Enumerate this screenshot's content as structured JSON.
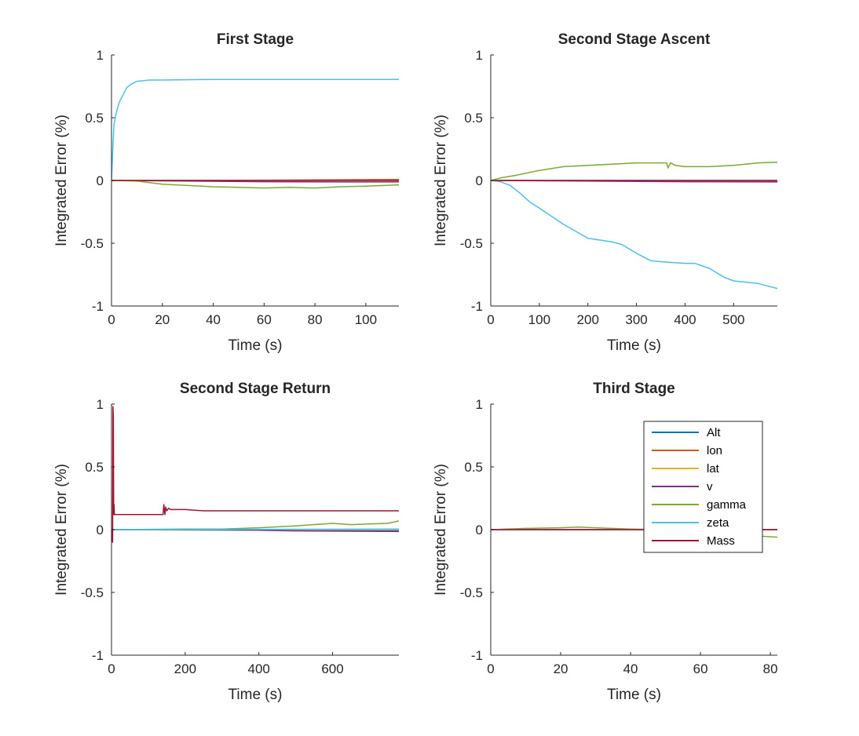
{
  "figure": {
    "legend": {
      "panel": 3,
      "placement": "top-right",
      "entries": [
        {
          "label": "Alt",
          "color": "#0072BD"
        },
        {
          "label": "lon",
          "color": "#D95319"
        },
        {
          "label": "lat",
          "color": "#EDB120"
        },
        {
          "label": "v",
          "color": "#7E2F8E"
        },
        {
          "label": "gamma",
          "color": "#77AC30"
        },
        {
          "label": "zeta",
          "color": "#4DBEEE"
        },
        {
          "label": "Mass",
          "color": "#A2142F"
        }
      ]
    }
  },
  "chart_data": [
    {
      "type": "line",
      "title": "First Stage",
      "xlabel": "Time (s)",
      "ylabel": "Integrated Error (%)",
      "xlim": [
        0,
        113
      ],
      "ylim": [
        -1,
        1
      ],
      "xticks": [
        0,
        20,
        40,
        60,
        80,
        100
      ],
      "yticks": [
        -1,
        -0.5,
        0,
        0.5,
        1
      ],
      "xticklabels": [
        "0",
        "20",
        "40",
        "60",
        "80",
        "100"
      ],
      "yticklabels": [
        "-1",
        "-0.5",
        "0",
        "0.5",
        "1"
      ],
      "grid": false,
      "series": [
        {
          "name": "Alt",
          "x": [
            0,
            113
          ],
          "y": [
            0,
            0
          ]
        },
        {
          "name": "lon",
          "x": [
            0,
            40,
            80,
            113
          ],
          "y": [
            0,
            0.0,
            0.005,
            0.008
          ]
        },
        {
          "name": "lat",
          "x": [
            0,
            113
          ],
          "y": [
            0,
            0
          ]
        },
        {
          "name": "v",
          "x": [
            0,
            30,
            60,
            90,
            113
          ],
          "y": [
            0,
            -0.005,
            -0.01,
            -0.012,
            -0.012
          ]
        },
        {
          "name": "gamma",
          "x": [
            0,
            10,
            20,
            30,
            40,
            50,
            60,
            70,
            80,
            90,
            100,
            113
          ],
          "y": [
            0,
            -0.005,
            -0.03,
            -0.04,
            -0.05,
            -0.055,
            -0.06,
            -0.055,
            -0.06,
            -0.05,
            -0.045,
            -0.035
          ]
        },
        {
          "name": "zeta",
          "x": [
            0,
            0.5,
            1,
            2,
            3,
            4,
            5,
            6,
            8,
            10,
            15,
            20,
            40,
            113
          ],
          "y": [
            0,
            0.25,
            0.45,
            0.55,
            0.62,
            0.66,
            0.7,
            0.74,
            0.77,
            0.79,
            0.8,
            0.8,
            0.805,
            0.805
          ]
        },
        {
          "name": "Mass",
          "x": [
            0,
            113
          ],
          "y": [
            0,
            0
          ]
        }
      ]
    },
    {
      "type": "line",
      "title": "Second Stage Ascent",
      "xlabel": "Time (s)",
      "ylabel": "Integrated Error (%)",
      "xlim": [
        0,
        590
      ],
      "ylim": [
        -1,
        1
      ],
      "xticks": [
        0,
        100,
        200,
        300,
        400,
        500
      ],
      "yticks": [
        -1,
        -0.5,
        0,
        0.5,
        1
      ],
      "xticklabels": [
        "0",
        "100",
        "200",
        "300",
        "400",
        "500"
      ],
      "yticklabels": [
        "-1",
        "-0.5",
        "0",
        "0.5",
        "1"
      ],
      "grid": false,
      "series": [
        {
          "name": "Alt",
          "x": [
            0,
            590
          ],
          "y": [
            0,
            0
          ]
        },
        {
          "name": "lon",
          "x": [
            0,
            590
          ],
          "y": [
            0,
            -0.005
          ]
        },
        {
          "name": "lat",
          "x": [
            0,
            590
          ],
          "y": [
            0,
            0
          ]
        },
        {
          "name": "v",
          "x": [
            0,
            200,
            400,
            590
          ],
          "y": [
            0,
            -0.005,
            -0.01,
            -0.012
          ]
        },
        {
          "name": "gamma",
          "x": [
            0,
            20,
            50,
            100,
            150,
            200,
            250,
            300,
            350,
            362,
            365,
            370,
            380,
            400,
            450,
            500,
            550,
            590
          ],
          "y": [
            0,
            0.02,
            0.04,
            0.08,
            0.11,
            0.12,
            0.13,
            0.14,
            0.14,
            0.14,
            0.1,
            0.14,
            0.12,
            0.11,
            0.11,
            0.12,
            0.14,
            0.145
          ]
        },
        {
          "name": "zeta",
          "x": [
            0,
            20,
            40,
            60,
            80,
            100,
            150,
            200,
            250,
            270,
            300,
            330,
            360,
            400,
            420,
            450,
            480,
            500,
            550,
            590
          ],
          "y": [
            0,
            -0.01,
            -0.04,
            -0.1,
            -0.17,
            -0.22,
            -0.35,
            -0.46,
            -0.49,
            -0.51,
            -0.58,
            -0.64,
            -0.65,
            -0.66,
            -0.66,
            -0.7,
            -0.77,
            -0.8,
            -0.82,
            -0.86
          ]
        },
        {
          "name": "Mass",
          "x": [
            0,
            590
          ],
          "y": [
            0,
            0
          ]
        }
      ]
    },
    {
      "type": "line",
      "title": "Second Stage Return",
      "xlabel": "Time (s)",
      "ylabel": "Integrated Error (%)",
      "xlim": [
        0,
        780
      ],
      "ylim": [
        -1,
        1
      ],
      "xticks": [
        0,
        200,
        400,
        600
      ],
      "yticks": [
        -1,
        -0.5,
        0,
        0.5,
        1
      ],
      "xticklabels": [
        "0",
        "200",
        "400",
        "600"
      ],
      "yticklabels": [
        "-1",
        "-0.5",
        "0",
        "0.5",
        "1"
      ],
      "grid": false,
      "series": [
        {
          "name": "Alt",
          "x": [
            0,
            400,
            780
          ],
          "y": [
            0,
            -0.005,
            -0.01
          ]
        },
        {
          "name": "lon",
          "x": [
            0,
            780
          ],
          "y": [
            0,
            0
          ]
        },
        {
          "name": "lat",
          "x": [
            0,
            780
          ],
          "y": [
            0,
            0
          ]
        },
        {
          "name": "v",
          "x": [
            0,
            300,
            500,
            780
          ],
          "y": [
            0,
            0,
            -0.01,
            -0.015
          ]
        },
        {
          "name": "gamma",
          "x": [
            0,
            200,
            300,
            400,
            500,
            600,
            650,
            700,
            750,
            780
          ],
          "y": [
            0,
            0.005,
            0.005,
            0.015,
            0.03,
            0.05,
            0.04,
            0.045,
            0.05,
            0.07
          ]
        },
        {
          "name": "zeta",
          "x": [
            0,
            780
          ],
          "y": [
            0,
            0.005
          ]
        },
        {
          "name": "Mass",
          "x": [
            0,
            3,
            4,
            5,
            6,
            7,
            8,
            12,
            100,
            140,
            142,
            145,
            147,
            150,
            155,
            160,
            200,
            250,
            400,
            600,
            780
          ],
          "y": [
            0,
            -0.1,
            0.98,
            0.9,
            0.12,
            0.2,
            0.12,
            0.12,
            0.12,
            0.12,
            0.2,
            0.12,
            0.18,
            0.15,
            0.17,
            0.16,
            0.16,
            0.15,
            0.15,
            0.15,
            0.15
          ]
        }
      ]
    },
    {
      "type": "line",
      "title": "Third Stage",
      "xlabel": "Time (s)",
      "ylabel": "Integrated Error (%)",
      "xlim": [
        0,
        82
      ],
      "ylim": [
        -1,
        1
      ],
      "xticks": [
        0,
        20,
        40,
        60,
        80
      ],
      "yticks": [
        -1,
        -0.5,
        0,
        0.5,
        1
      ],
      "xticklabels": [
        "0",
        "20",
        "40",
        "60",
        "80"
      ],
      "yticklabels": [
        "-1",
        "-0.5",
        "0",
        "0.5",
        "1"
      ],
      "grid": false,
      "series": [
        {
          "name": "Alt",
          "x": [
            0,
            82
          ],
          "y": [
            0,
            0
          ]
        },
        {
          "name": "lon",
          "x": [
            0,
            82
          ],
          "y": [
            0,
            0
          ]
        },
        {
          "name": "lat",
          "x": [
            0,
            82
          ],
          "y": [
            0,
            0
          ]
        },
        {
          "name": "v",
          "x": [
            0,
            82
          ],
          "y": [
            0,
            0
          ]
        },
        {
          "name": "gamma",
          "x": [
            0,
            10,
            20,
            25,
            30,
            40,
            50,
            60,
            70,
            82
          ],
          "y": [
            0,
            0.01,
            0.015,
            0.02,
            0.015,
            0.005,
            0.0,
            -0.02,
            -0.04,
            -0.06
          ]
        },
        {
          "name": "zeta",
          "x": [
            0,
            82
          ],
          "y": [
            0,
            0
          ]
        },
        {
          "name": "Mass",
          "x": [
            0,
            82
          ],
          "y": [
            0,
            0
          ]
        }
      ]
    }
  ]
}
